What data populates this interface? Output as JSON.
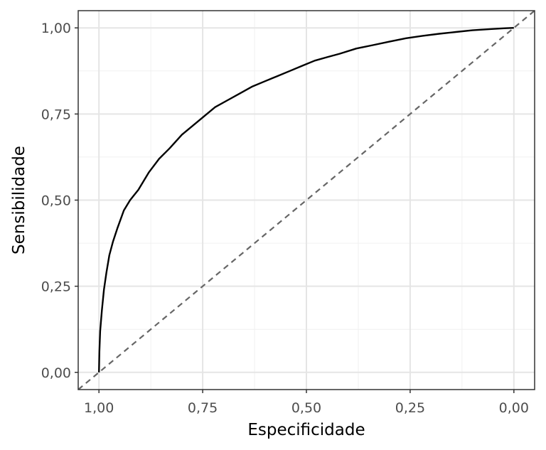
{
  "chart_data": {
    "type": "line",
    "title": "",
    "xlabel": "Especificidade",
    "ylabel": "Sensibilidade",
    "xlim": [
      1.05,
      -0.05
    ],
    "ylim": [
      -0.05,
      1.05
    ],
    "x_reversed": true,
    "x_ticks": [
      1.0,
      0.75,
      0.5,
      0.25,
      0.0
    ],
    "x_tick_labels": [
      "1,00",
      "0,75",
      "0,50",
      "0,25",
      "0,00"
    ],
    "y_ticks": [
      0.0,
      0.25,
      0.5,
      0.75,
      1.0
    ],
    "y_tick_labels": [
      "0,00",
      "0,25",
      "0,50",
      "0,75",
      "1,00"
    ],
    "grid": true,
    "series": [
      {
        "role": "roc-curve",
        "color": "#000000",
        "x": [
          1.0,
          0.999,
          0.997,
          0.993,
          0.988,
          0.982,
          0.975,
          0.966,
          0.955,
          0.94,
          0.925,
          0.905,
          0.88,
          0.855,
          0.83,
          0.8,
          0.77,
          0.745,
          0.72,
          0.69,
          0.66,
          0.63,
          0.6,
          0.57,
          0.54,
          0.51,
          0.48,
          0.45,
          0.42,
          0.38,
          0.34,
          0.3,
          0.26,
          0.22,
          0.18,
          0.14,
          0.1,
          0.05,
          0.02,
          0.0
        ],
        "y": [
          0.0,
          0.06,
          0.12,
          0.18,
          0.24,
          0.29,
          0.34,
          0.38,
          0.42,
          0.47,
          0.5,
          0.53,
          0.58,
          0.62,
          0.65,
          0.69,
          0.72,
          0.745,
          0.77,
          0.79,
          0.81,
          0.83,
          0.845,
          0.86,
          0.875,
          0.89,
          0.905,
          0.915,
          0.925,
          0.94,
          0.95,
          0.96,
          0.97,
          0.977,
          0.983,
          0.988,
          0.993,
          0.997,
          0.999,
          1.0
        ]
      },
      {
        "role": "reference-diagonal",
        "color": "#666666",
        "dash": true,
        "x": [
          1.05,
          -0.05
        ],
        "y": [
          -0.05,
          1.05
        ]
      }
    ]
  }
}
